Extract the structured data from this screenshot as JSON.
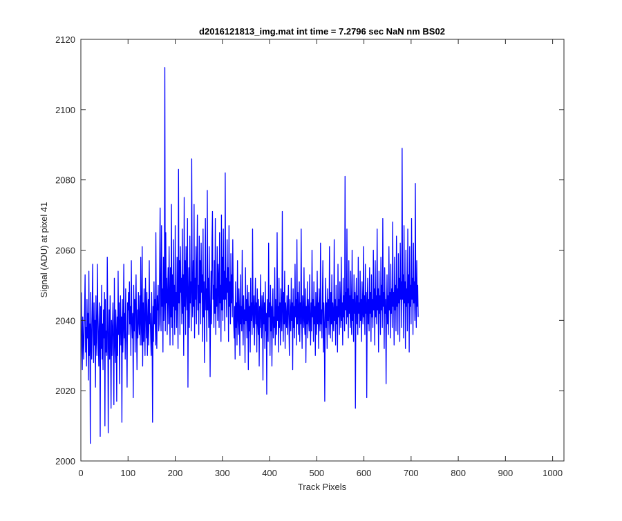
{
  "window": {
    "background": "#ffffff"
  },
  "chart_data": {
    "type": "line",
    "title": "d2016121813_img.mat int time = 7.2796 sec  NaN nm BS02",
    "xlabel": "Track Pixels",
    "ylabel": "Signal (ADU) at pixel 41",
    "xlim": [
      0,
      1024
    ],
    "ylim": [
      2000,
      2120
    ],
    "xticks": [
      0,
      100,
      200,
      300,
      400,
      500,
      600,
      700,
      800,
      900,
      1000
    ],
    "yticks": [
      2000,
      2020,
      2040,
      2060,
      2080,
      2100,
      2120
    ],
    "grid": false,
    "legend": "none",
    "line_color": "#0000ff",
    "series": [
      {
        "x_start": 1,
        "x_step": 1,
        "values": [
          2048,
          2032,
          2026,
          2041,
          2035,
          2029,
          2037,
          2044,
          2053,
          2031,
          2038,
          2027,
          2046,
          2035,
          2042,
          2023,
          2054,
          2030,
          2039,
          2005,
          2048,
          2034,
          2029,
          2041,
          2056,
          2036,
          2028,
          2045,
          2033,
          2040,
          2021,
          2047,
          2036,
          2030,
          2056,
          2042,
          2034,
          2027,
          2045,
          2038,
          2007,
          2044,
          2032,
          2050,
          2029,
          2039,
          2026,
          2043,
          2035,
          2048,
          2010,
          2046,
          2031,
          2037,
          2030,
          2058,
          2041,
          2008,
          2036,
          2043,
          2029,
          2047,
          2034,
          2015,
          2040,
          2030,
          2038,
          2045,
          2031,
          2016,
          2052,
          2035,
          2028,
          2043,
          2037,
          2017,
          2041,
          2030,
          2054,
          2036,
          2045,
          2022,
          2039,
          2047,
          2033,
          2041,
          2011,
          2046,
          2031,
          2038,
          2056,
          2035,
          2042,
          2029,
          2049,
          2037,
          2033,
          2021,
          2045,
          2043,
          2048,
          2036,
          2051,
          2039,
          2044,
          2030,
          2057,
          2040,
          2035,
          2042,
          2018,
          2050,
          2037,
          2046,
          2031,
          2045,
          2053,
          2038,
          2026,
          2043,
          2035,
          2048,
          2040,
          2036,
          2047,
          2033,
          2058,
          2040,
          2033,
          2061,
          2027,
          2045,
          2034,
          2049,
          2038,
          2030,
          2052,
          2043,
          2035,
          2048,
          2030,
          2039,
          2046,
          2033,
          2057,
          2039,
          2042,
          2035,
          2030,
          2048,
          2037,
          2011,
          2044,
          2034,
          2051,
          2039,
          2046,
          2033,
          2065,
          2040,
          2032,
          2047,
          2043,
          2050,
          2037,
          2039,
          2055,
          2072,
          2042,
          2037,
          2067,
          2044,
          2049,
          2031,
          2058,
          2040,
          2045,
          2112,
          2037,
          2065,
          2045,
          2052,
          2036,
          2048,
          2055,
          2039,
          2061,
          2047,
          2033,
          2055,
          2041,
          2073,
          2038,
          2053,
          2033,
          2063,
          2044,
          2050,
          2036,
          2067,
          2043,
          2048,
          2038,
          2058,
          2045,
          2032,
          2083,
          2045,
          2057,
          2036,
          2061,
          2048,
          2052,
          2039,
          2066,
          2042,
          2053,
          2030,
          2075,
          2044,
          2057,
          2036,
          2061,
          2049,
          2043,
          2069,
          2021,
          2047,
          2055,
          2038,
          2064,
          2045,
          2051,
          2037,
          2086,
          2049,
          2041,
          2057,
          2044,
          2073,
          2035,
          2052,
          2046,
          2061,
          2039,
          2055,
          2070,
          2043,
          2050,
          2036,
          2064,
          2045,
          2057,
          2039,
          2062,
          2048,
          2053,
          2034,
          2066,
          2041,
          2051,
          2028,
          2047,
          2069,
          2043,
          2049,
          2034,
          2077,
          2043,
          2052,
          2038,
          2061,
          2046,
          2024,
          2044,
          2054,
          2039,
          2063,
          2071,
          2046,
          2050,
          2038,
          2057,
          2042,
          2069,
          2036,
          2049,
          2044,
          2061,
          2040,
          2056,
          2052,
          2038,
          2065,
          2045,
          2050,
          2034,
          2070,
          2043,
          2058,
          2040,
          2066,
          2046,
          2054,
          2037,
          2082,
          2046,
          2052,
          2041,
          2063,
          2048,
          2055,
          2034,
          2067,
          2044,
          2051,
          2039,
          2059,
          2045,
          2053,
          2041,
          2063,
          2048,
          2039,
          2035,
          2044,
          2029,
          2051,
          2038,
          2045,
          2033,
          2057,
          2041,
          2036,
          2049,
          2042,
          2030,
          2053,
          2039,
          2044,
          2037,
          2060,
          2041,
          2033,
          2047,
          2039,
          2043,
          2028,
          2055,
          2040,
          2046,
          2035,
          2050,
          2043,
          2026,
          2048,
          2037,
          2044,
          2031,
          2052,
          2040,
          2045,
          2036,
          2066,
          2042,
          2038,
          2047,
          2033,
          2043,
          2052,
          2039,
          2045,
          2031,
          2049,
          2040,
          2036,
          2046,
          2027,
          2044,
          2038,
          2053,
          2041,
          2035,
          2047,
          2043,
          2023,
          2048,
          2039,
          2045,
          2032,
          2051,
          2037,
          2042,
          2019,
          2046,
          2038,
          2034,
          2062,
          2041,
          2045,
          2030,
          2050,
          2037,
          2044,
          2027,
          2043,
          2049,
          2035,
          2041,
          2038,
          2055,
          2033,
          2046,
          2040,
          2036,
          2065,
          2040,
          2044,
          2031,
          2052,
          2038,
          2045,
          2033,
          2049,
          2042,
          2037,
          2071,
          2043,
          2034,
          2048,
          2039,
          2054,
          2032,
          2045,
          2041,
          2038,
          2047,
          2036,
          2043,
          2050,
          2039,
          2030,
          2046,
          2042,
          2037,
          2052,
          2040,
          2045,
          2026,
          2049,
          2038,
          2044,
          2035,
          2056,
          2041,
          2046,
          2033,
          2063,
          2039,
          2048,
          2036,
          2043,
          2051,
          2034,
          2045,
          2039,
          2066,
          2041,
          2032,
          2047,
          2043,
          2038,
          2055,
          2040,
          2036,
          2049,
          2028,
          2044,
          2039,
          2051,
          2035,
          2046,
          2042,
          2037,
          2053,
          2040,
          2033,
          2045,
          2037,
          2060,
          2041,
          2046,
          2034,
          2051,
          2039,
          2044,
          2030,
          2048,
          2042,
          2036,
          2054,
          2039,
          2045,
          2032,
          2049,
          2041,
          2037,
          2062,
          2039,
          2043,
          2035,
          2047,
          2057,
          2031,
          2045,
          2039,
          2017,
          2044,
          2052,
          2038,
          2045,
          2032,
          2049,
          2040,
          2046,
          2036,
          2061,
          2042,
          2035,
          2048,
          2039,
          2053,
          2034,
          2045,
          2041,
          2037,
          2063,
          2040,
          2046,
          2033,
          2050,
          2039,
          2044,
          2031,
          2056,
          2041,
          2046,
          2036,
          2051,
          2043,
          2038,
          2058,
          2040,
          2045,
          2033,
          2052,
          2041,
          2047,
          2037,
          2081,
          2043,
          2048,
          2039,
          2066,
          2041,
          2049,
          2035,
          2057,
          2042,
          2047,
          2038,
          2054,
          2041,
          2036,
          2060,
          2040,
          2046,
          2034,
          2053,
          2042,
          2048,
          2015,
          2045,
          2052,
          2039,
          2047,
          2036,
          2058,
          2042,
          2045,
          2038,
          2054,
          2040,
          2046,
          2034,
          2051,
          2043,
          2039,
          2061,
          2041,
          2047,
          2036,
          2056,
          2042,
          2048,
          2018,
          2045,
          2052,
          2039,
          2046,
          2037,
          2055,
          2042,
          2048,
          2034,
          2053,
          2041,
          2046,
          2038,
          2060,
          2043,
          2049,
          2033,
          2057,
          2041,
          2047,
          2039,
          2066,
          2043,
          2049,
          2031,
          2054,
          2042,
          2047,
          2036,
          2058,
          2043,
          2050,
          2038,
          2069,
          2044,
          2048,
          2032,
          2055,
          2042,
          2046,
          2022,
          2044,
          2053,
          2039,
          2047,
          2036,
          2061,
          2043,
          2048,
          2035,
          2056,
          2042,
          2049,
          2038,
          2068,
          2044,
          2048,
          2033,
          2058,
          2043,
          2050,
          2037,
          2064,
          2044,
          2049,
          2036,
          2059,
          2045,
          2052,
          2034,
          2062,
          2046,
          2051,
          2038,
          2089,
          2046,
          2053,
          2035,
          2067,
          2045,
          2051,
          2032,
          2060,
          2044,
          2049,
          2037,
          2066,
          2045,
          2053,
          2031,
          2061,
          2044,
          2050,
          2039,
          2069,
          2046,
          2052,
          2036,
          2062,
          2045,
          2051,
          2040,
          2079,
          2046,
          2038,
          2057,
          2044,
          2050,
          2041
        ]
      }
    ]
  }
}
